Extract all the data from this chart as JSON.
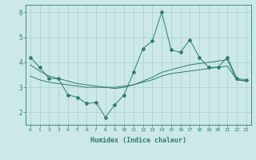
{
  "xlabel": "Humidex (Indice chaleur)",
  "x": [
    0,
    1,
    2,
    3,
    4,
    5,
    6,
    7,
    8,
    9,
    10,
    11,
    12,
    13,
    14,
    15,
    16,
    17,
    18,
    19,
    20,
    21,
    22,
    23
  ],
  "y_main": [
    4.2,
    3.8,
    3.35,
    3.35,
    2.7,
    2.6,
    2.35,
    2.4,
    1.8,
    2.3,
    2.7,
    3.6,
    4.55,
    4.85,
    6.0,
    4.5,
    4.4,
    4.9,
    4.2,
    3.8,
    3.8,
    4.2,
    3.35,
    3.3
  ],
  "y_trend1": [
    3.45,
    3.3,
    3.2,
    3.15,
    3.1,
    3.05,
    3.0,
    3.0,
    3.0,
    3.0,
    3.05,
    3.1,
    3.2,
    3.3,
    3.45,
    3.55,
    3.6,
    3.65,
    3.7,
    3.75,
    3.8,
    3.85,
    3.3,
    3.25
  ],
  "y_trend2": [
    3.9,
    3.65,
    3.45,
    3.35,
    3.25,
    3.15,
    3.1,
    3.05,
    3.0,
    2.95,
    3.0,
    3.1,
    3.25,
    3.4,
    3.6,
    3.7,
    3.8,
    3.9,
    3.95,
    4.0,
    4.05,
    4.1,
    3.3,
    3.25
  ],
  "line_color": "#2e7d6e",
  "bg_color": "#cce8e8",
  "grid_color": "#aacfcf",
  "ylim": [
    1.5,
    6.3
  ],
  "xlim": [
    -0.5,
    23.5
  ]
}
